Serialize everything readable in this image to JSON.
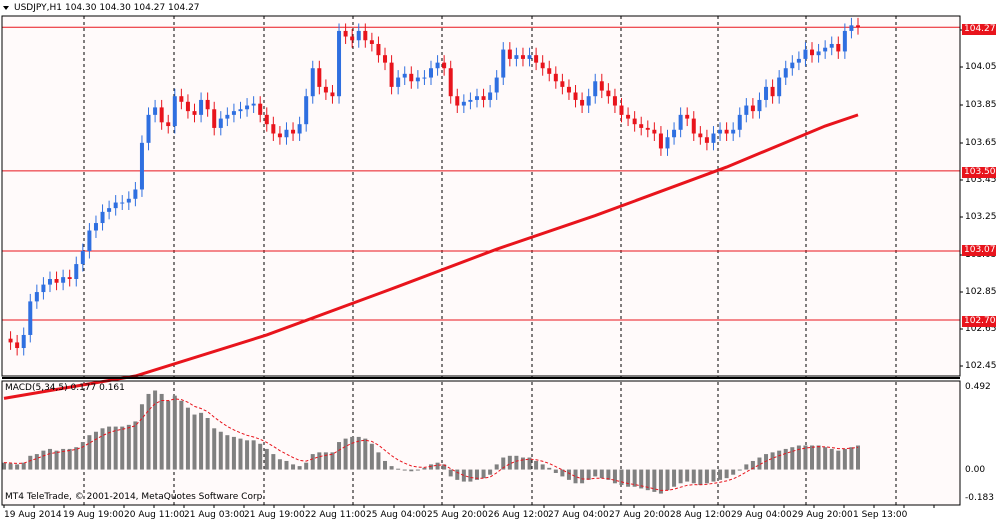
{
  "header": {
    "symbol": "USDJPY,H1",
    "ohlc": "104.30 104.30 104.27 104.27"
  },
  "macd_panel": {
    "title": "MACD(5,34,5) 0.177 0.161"
  },
  "copyright": "MT4 TeleTrade, © 2001-2014, MetaQuotes Software Corp.",
  "price_axis": {
    "labels": [
      "104.05",
      "103.85",
      "103.65",
      "103.45",
      "103.25",
      "103.05",
      "102.85",
      "102.65",
      "102.45"
    ]
  },
  "levels": [
    {
      "price": 104.27,
      "label": "104.27"
    },
    {
      "price": 103.5,
      "label": "103.50"
    },
    {
      "price": 103.07,
      "label": "103.07"
    },
    {
      "price": 102.7,
      "label": "102.70"
    }
  ],
  "macd_axis": {
    "labels": [
      "0.492",
      "0.00",
      "-0.183"
    ]
  },
  "time_axis": {
    "labels": [
      "19 Aug 2014",
      "19 Aug 19:00",
      "20 Aug 11:00",
      "21 Aug 03:00",
      "21 Aug 19:00",
      "22 Aug 11:00",
      "25 Aug 04:00",
      "25 Aug 20:00",
      "26 Aug 12:00",
      "27 Aug 04:00",
      "27 Aug 20:00",
      "28 Aug 12:00",
      "29 Aug 04:00",
      "29 Aug 20:00",
      "1 Sep 13:00"
    ]
  },
  "colors": {
    "bull": "#2f6fe0",
    "bear": "#e8141c",
    "ma": "#e8141c",
    "level": "#e8141c",
    "macd_bar": "#808080",
    "signal": "#e8141c",
    "background": "#fffafa"
  },
  "chart_data": {
    "type": "line",
    "price_ylim": [
      102.4,
      104.33
    ],
    "macd_ylim": [
      -0.183,
      0.492
    ],
    "price_path": [
      [
        0,
        102.6
      ],
      [
        1,
        102.58
      ],
      [
        2,
        102.55
      ],
      [
        3,
        102.62
      ],
      [
        4,
        102.8
      ],
      [
        5,
        102.85
      ],
      [
        6,
        102.89
      ],
      [
        7,
        102.92
      ],
      [
        8,
        102.9
      ],
      [
        9,
        102.93
      ],
      [
        10,
        102.92
      ],
      [
        11,
        103.0
      ],
      [
        12,
        103.07
      ],
      [
        13,
        103.18
      ],
      [
        14,
        103.22
      ],
      [
        15,
        103.28
      ],
      [
        16,
        103.3
      ],
      [
        17,
        103.33
      ],
      [
        18,
        103.33
      ],
      [
        19,
        103.35
      ],
      [
        20,
        103.4
      ],
      [
        21,
        103.65
      ],
      [
        22,
        103.8
      ],
      [
        23,
        103.84
      ],
      [
        24,
        103.76
      ],
      [
        25,
        103.74
      ],
      [
        26,
        103.9
      ],
      [
        27,
        103.87
      ],
      [
        28,
        103.82
      ],
      [
        29,
        103.8
      ],
      [
        30,
        103.88
      ],
      [
        31,
        103.83
      ],
      [
        32,
        103.73
      ],
      [
        33,
        103.78
      ],
      [
        34,
        103.8
      ],
      [
        35,
        103.82
      ],
      [
        36,
        103.83
      ],
      [
        37,
        103.85
      ],
      [
        38,
        103.86
      ],
      [
        39,
        103.8
      ],
      [
        40,
        103.75
      ],
      [
        41,
        103.7
      ],
      [
        42,
        103.68
      ],
      [
        43,
        103.72
      ],
      [
        44,
        103.7
      ],
      [
        45,
        103.75
      ],
      [
        46,
        103.9
      ],
      [
        47,
        104.05
      ],
      [
        48,
        103.95
      ],
      [
        49,
        103.92
      ],
      [
        50,
        103.9
      ],
      [
        51,
        104.25
      ],
      [
        52,
        104.22
      ],
      [
        53,
        104.2
      ],
      [
        54,
        104.25
      ],
      [
        55,
        104.2
      ],
      [
        56,
        104.18
      ],
      [
        57,
        104.12
      ],
      [
        58,
        104.08
      ],
      [
        59,
        103.95
      ],
      [
        60,
        104.0
      ],
      [
        61,
        104.02
      ],
      [
        62,
        103.98
      ],
      [
        63,
        104.0
      ],
      [
        64,
        104.0
      ],
      [
        65,
        104.05
      ],
      [
        66,
        104.08
      ],
      [
        67,
        104.05
      ],
      [
        68,
        103.9
      ],
      [
        69,
        103.85
      ],
      [
        70,
        103.87
      ],
      [
        71,
        103.88
      ],
      [
        72,
        103.9
      ],
      [
        73,
        103.88
      ],
      [
        74,
        103.92
      ],
      [
        75,
        104.0
      ],
      [
        76,
        104.15
      ],
      [
        77,
        104.1
      ],
      [
        78,
        104.12
      ],
      [
        79,
        104.1
      ],
      [
        80,
        104.12
      ],
      [
        81,
        104.08
      ],
      [
        82,
        104.05
      ],
      [
        83,
        104.02
      ],
      [
        84,
        103.98
      ],
      [
        85,
        103.95
      ],
      [
        86,
        103.92
      ],
      [
        87,
        103.88
      ],
      [
        88,
        103.85
      ],
      [
        89,
        103.9
      ],
      [
        90,
        103.98
      ],
      [
        91,
        103.93
      ],
      [
        92,
        103.9
      ],
      [
        93,
        103.85
      ],
      [
        94,
        103.8
      ],
      [
        95,
        103.78
      ],
      [
        96,
        103.75
      ],
      [
        97,
        103.73
      ],
      [
        98,
        103.72
      ],
      [
        99,
        103.7
      ],
      [
        100,
        103.62
      ],
      [
        101,
        103.68
      ],
      [
        102,
        103.72
      ],
      [
        103,
        103.8
      ],
      [
        104,
        103.78
      ],
      [
        105,
        103.7
      ],
      [
        106,
        103.68
      ],
      [
        107,
        103.65
      ],
      [
        108,
        103.7
      ],
      [
        109,
        103.72
      ],
      [
        110,
        103.7
      ],
      [
        111,
        103.72
      ],
      [
        112,
        103.8
      ],
      [
        113,
        103.85
      ],
      [
        114,
        103.82
      ],
      [
        115,
        103.88
      ],
      [
        116,
        103.95
      ],
      [
        117,
        103.9
      ],
      [
        118,
        104.0
      ],
      [
        119,
        104.05
      ],
      [
        120,
        104.08
      ],
      [
        121,
        104.1
      ],
      [
        122,
        104.15
      ],
      [
        123,
        104.12
      ],
      [
        124,
        104.14
      ],
      [
        125,
        104.16
      ],
      [
        126,
        104.18
      ],
      [
        127,
        104.14
      ],
      [
        128,
        104.25
      ],
      [
        129,
        104.28
      ],
      [
        130,
        104.27
      ]
    ],
    "ma_path": [
      [
        0,
        102.28
      ],
      [
        20,
        102.4
      ],
      [
        40,
        102.62
      ],
      [
        60,
        102.88
      ],
      [
        75,
        103.08
      ],
      [
        90,
        103.26
      ],
      [
        110,
        103.52
      ],
      [
        125,
        103.74
      ],
      [
        130,
        103.8
      ]
    ],
    "macd_values": [
      0.04,
      0.035,
      0.03,
      0.04,
      0.08,
      0.09,
      0.11,
      0.12,
      0.11,
      0.12,
      0.12,
      0.13,
      0.16,
      0.2,
      0.22,
      0.24,
      0.25,
      0.25,
      0.25,
      0.26,
      0.28,
      0.38,
      0.44,
      0.46,
      0.44,
      0.4,
      0.43,
      0.4,
      0.36,
      0.32,
      0.33,
      0.3,
      0.24,
      0.22,
      0.2,
      0.19,
      0.18,
      0.17,
      0.17,
      0.15,
      0.12,
      0.09,
      0.06,
      0.05,
      0.03,
      0.02,
      0.04,
      0.09,
      0.1,
      0.1,
      0.1,
      0.16,
      0.18,
      0.19,
      0.19,
      0.18,
      0.15,
      0.1,
      0.05,
      0.02,
      0.005,
      0.0,
      -0.01,
      0.0,
      0.01,
      0.03,
      0.04,
      0.03,
      -0.04,
      -0.06,
      -0.07,
      -0.07,
      -0.06,
      -0.05,
      -0.03,
      0.03,
      0.07,
      0.08,
      0.08,
      0.07,
      0.07,
      0.05,
      0.03,
      0.01,
      -0.02,
      -0.04,
      -0.06,
      -0.08,
      -0.08,
      -0.06,
      -0.04,
      -0.05,
      -0.06,
      -0.08,
      -0.09,
      -0.1,
      -0.1,
      -0.11,
      -0.12,
      -0.13,
      -0.14,
      -0.12,
      -0.1,
      -0.08,
      -0.07,
      -0.08,
      -0.09,
      -0.08,
      -0.07,
      -0.06,
      -0.05,
      -0.03,
      0.0,
      0.03,
      0.05,
      0.07,
      0.09,
      0.1,
      0.11,
      0.12,
      0.13,
      0.14,
      0.14,
      0.14,
      0.14,
      0.13,
      0.12,
      0.11,
      0.12,
      0.13,
      0.14
    ]
  }
}
